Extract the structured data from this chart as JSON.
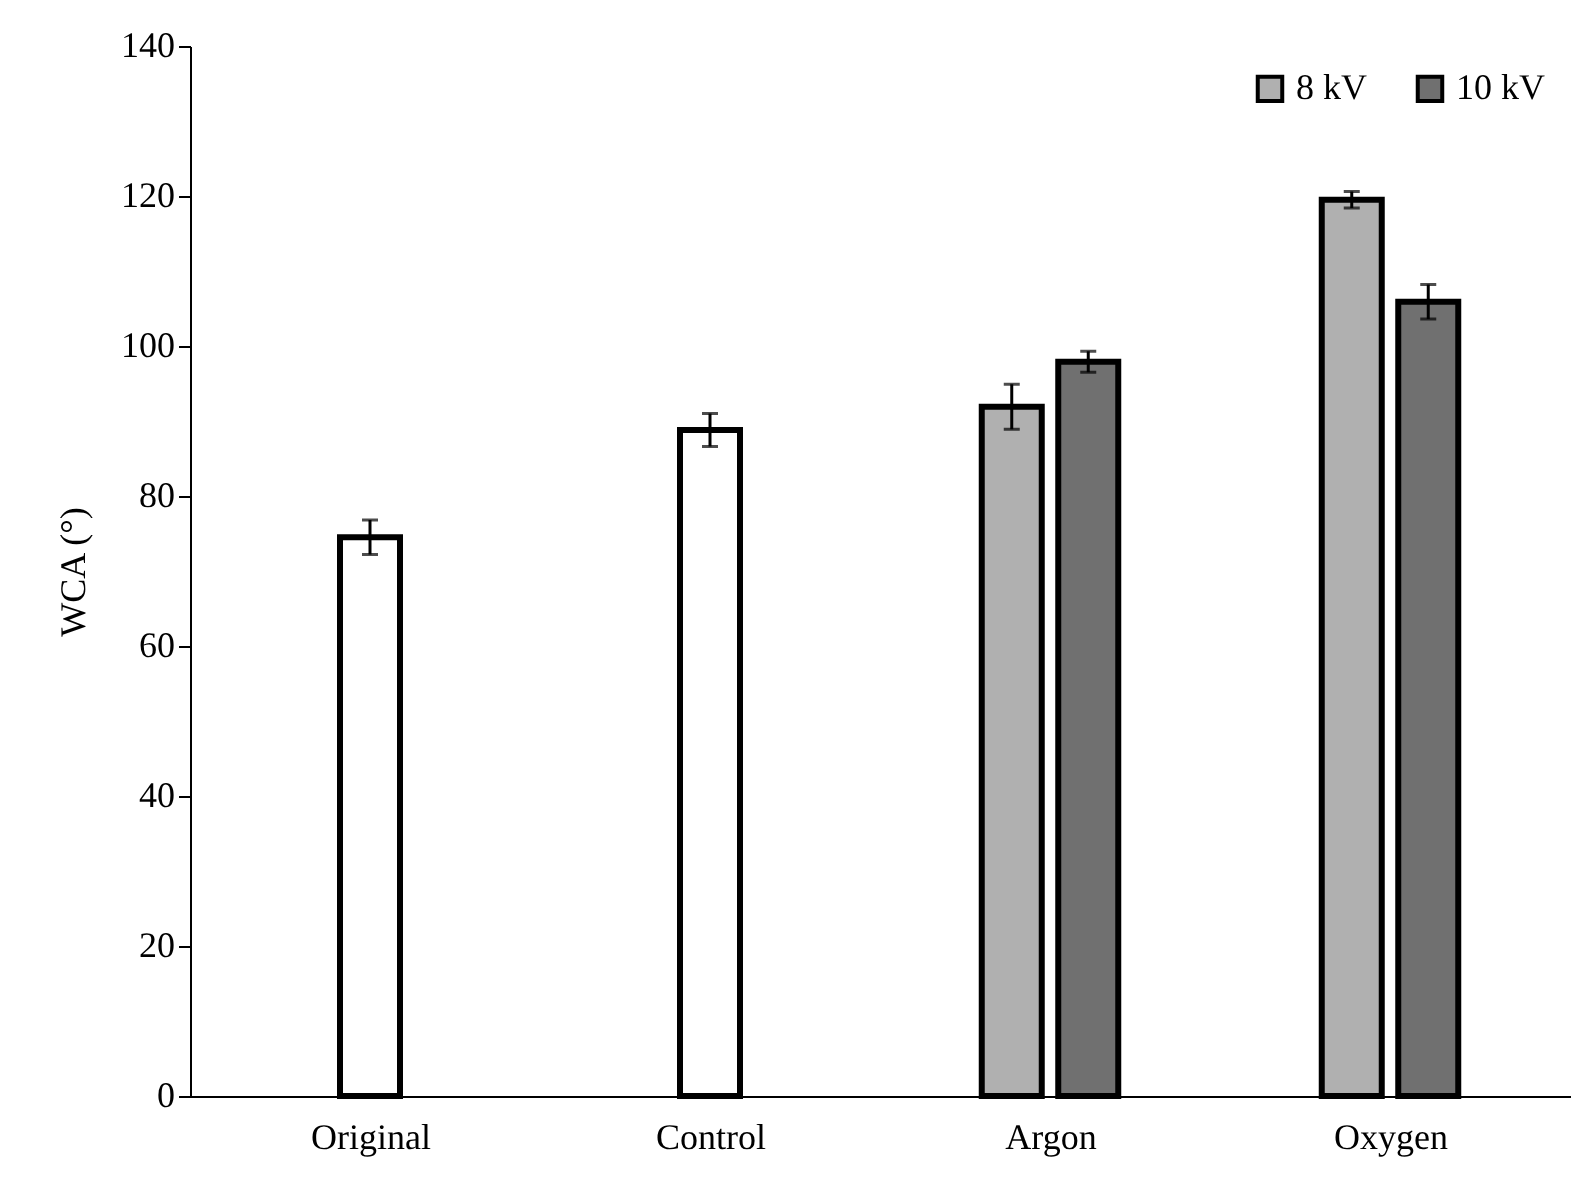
{
  "chart_data": {
    "type": "bar",
    "ylabel": "WCA (°)",
    "categories": [
      "Original",
      "Control",
      "Argon",
      "Oxygen"
    ],
    "series": [
      {
        "color": "#ffffff",
        "values": [
          74.5,
          88.8,
          null,
          null
        ],
        "errors": [
          2.3,
          2.2,
          null,
          null
        ]
      },
      {
        "name": "8 kV",
        "color": "#b0b0b0",
        "values": [
          null,
          null,
          91.9,
          119.5
        ],
        "errors": [
          null,
          null,
          3,
          1.1
        ]
      },
      {
        "name": "10 kV",
        "color": "#707070",
        "values": [
          null,
          null,
          97.9,
          105.9
        ],
        "errors": [
          null,
          null,
          1.4,
          2.3
        ]
      }
    ],
    "ylim": [
      0,
      140
    ],
    "yticks": [
      0,
      20,
      40,
      60,
      80,
      100,
      120,
      140
    ],
    "grid": false,
    "legend": "top right"
  }
}
